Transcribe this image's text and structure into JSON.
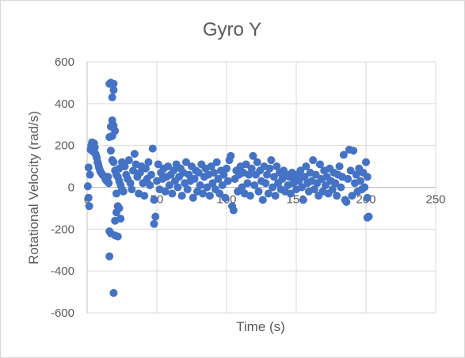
{
  "chart_data": {
    "type": "scatter",
    "title": "Gyro Y",
    "xlabel": "Time (s)",
    "ylabel": "Rotational Velocity (rad/s)",
    "xlim": [
      0,
      250
    ],
    "ylim": [
      -600,
      600
    ],
    "xticks": [
      0,
      50,
      100,
      150,
      200,
      250
    ],
    "yticks": [
      -600,
      -400,
      -200,
      0,
      200,
      400,
      600
    ],
    "xtick_labels": [
      "0",
      "50",
      "100",
      "150",
      "200",
      "250"
    ],
    "ytick_labels": [
      "-600",
      "-400",
      "-200",
      "0",
      "200",
      "400",
      "600"
    ],
    "grid": true,
    "legend": "none",
    "marker_color": "#4472C4",
    "series": [
      {
        "points": [
          [
            0.5,
            5
          ],
          [
            1,
            -50
          ],
          [
            1.5,
            -90
          ],
          [
            1,
            95
          ],
          [
            2,
            60
          ],
          [
            2.5,
            180
          ],
          [
            3,
            200
          ],
          [
            3.5,
            215
          ],
          [
            4,
            195
          ],
          [
            4.5,
            170
          ],
          [
            5,
            210
          ],
          [
            5.5,
            190
          ],
          [
            6,
            160
          ],
          [
            6.5,
            150
          ],
          [
            7,
            140
          ],
          [
            7.5,
            120
          ],
          [
            8,
            110
          ],
          [
            8.5,
            95
          ],
          [
            9,
            85
          ],
          [
            9.5,
            75
          ],
          [
            10,
            70
          ],
          [
            11,
            60
          ],
          [
            12,
            55
          ],
          [
            13,
            40
          ],
          [
            14,
            30
          ],
          [
            15,
            50
          ],
          [
            15.5,
            20
          ],
          [
            16,
            495
          ],
          [
            17,
            500
          ],
          [
            19,
            495
          ],
          [
            18,
            430
          ],
          [
            19,
            465
          ],
          [
            18,
            320
          ],
          [
            17,
            290
          ],
          [
            19,
            295
          ],
          [
            20,
            270
          ],
          [
            18,
            245
          ],
          [
            17,
            175
          ],
          [
            16,
            240
          ],
          [
            16,
            -210
          ],
          [
            17,
            -220
          ],
          [
            16,
            -330
          ],
          [
            19,
            -505
          ],
          [
            20,
            -230
          ],
          [
            22,
            -235
          ],
          [
            20,
            -160
          ],
          [
            21,
            -120
          ],
          [
            22,
            -90
          ],
          [
            23,
            -100
          ],
          [
            24,
            -150
          ],
          [
            18,
            130
          ],
          [
            19,
            120
          ],
          [
            20,
            80
          ],
          [
            21,
            60
          ],
          [
            22,
            50
          ],
          [
            23,
            30
          ],
          [
            24,
            10
          ],
          [
            25,
            -10
          ],
          [
            26,
            -20
          ],
          [
            21,
            -30
          ],
          [
            23,
            90
          ],
          [
            25,
            120
          ],
          [
            27,
            100
          ],
          [
            28,
            60
          ],
          [
            29,
            40
          ],
          [
            30,
            130
          ],
          [
            31,
            20
          ],
          [
            32,
            -10
          ],
          [
            33,
            80
          ],
          [
            34,
            160
          ],
          [
            35,
            110
          ],
          [
            36,
            50
          ],
          [
            37,
            -30
          ],
          [
            38,
            70
          ],
          [
            39,
            100
          ],
          [
            40,
            20
          ],
          [
            41,
            -40
          ],
          [
            42,
            90
          ],
          [
            43,
            40
          ],
          [
            44,
            120
          ],
          [
            45,
            10
          ],
          [
            46,
            60
          ],
          [
            47,
            185
          ],
          [
            48,
            -60
          ],
          [
            49,
            -140
          ],
          [
            48,
            -175
          ],
          [
            50,
            30
          ],
          [
            51,
            110
          ],
          [
            52,
            -10
          ],
          [
            53,
            70
          ],
          [
            54,
            40
          ],
          [
            55,
            90
          ],
          [
            56,
            -20
          ],
          [
            57,
            50
          ],
          [
            58,
            100
          ],
          [
            59,
            10
          ],
          [
            60,
            60
          ],
          [
            61,
            -30
          ],
          [
            62,
            80
          ],
          [
            63,
            30
          ],
          [
            64,
            110
          ],
          [
            65,
            0
          ],
          [
            66,
            50
          ],
          [
            67,
            90
          ],
          [
            68,
            -40
          ],
          [
            69,
            70
          ],
          [
            70,
            20
          ],
          [
            71,
            120
          ],
          [
            72,
            -10
          ],
          [
            73,
            60
          ],
          [
            74,
            30
          ],
          [
            75,
            100
          ],
          [
            76,
            -50
          ],
          [
            77,
            40
          ],
          [
            78,
            80
          ],
          [
            79,
            -20
          ],
          [
            80,
            70
          ],
          [
            81,
            10
          ],
          [
            82,
            110
          ],
          [
            83,
            -30
          ],
          [
            84,
            50
          ],
          [
            85,
            90
          ],
          [
            86,
            0
          ],
          [
            87,
            60
          ],
          [
            88,
            -40
          ],
          [
            89,
            100
          ],
          [
            90,
            20
          ],
          [
            91,
            70
          ],
          [
            92,
            -10
          ],
          [
            93,
            120
          ],
          [
            94,
            40
          ],
          [
            95,
            -30
          ],
          [
            96,
            80
          ],
          [
            97,
            10
          ],
          [
            98,
            60
          ],
          [
            99,
            -50
          ],
          [
            100,
            90
          ],
          [
            101,
            30
          ],
          [
            102,
            130
          ],
          [
            103,
            150
          ],
          [
            104,
            -90
          ],
          [
            105,
            -110
          ],
          [
            106,
            40
          ],
          [
            107,
            80
          ],
          [
            108,
            -20
          ],
          [
            109,
            60
          ],
          [
            110,
            100
          ],
          [
            111,
            0
          ],
          [
            112,
            70
          ],
          [
            113,
            -30
          ],
          [
            114,
            110
          ],
          [
            115,
            20
          ],
          [
            116,
            60
          ],
          [
            117,
            -40
          ],
          [
            118,
            90
          ],
          [
            119,
            150
          ],
          [
            120,
            10
          ],
          [
            121,
            60
          ],
          [
            122,
            120
          ],
          [
            123,
            -20
          ],
          [
            124,
            80
          ],
          [
            125,
            30
          ],
          [
            126,
            -60
          ],
          [
            127,
            100
          ],
          [
            128,
            20
          ],
          [
            129,
            60
          ],
          [
            130,
            -30
          ],
          [
            131,
            90
          ],
          [
            132,
            130
          ],
          [
            133,
            0
          ],
          [
            134,
            50
          ],
          [
            135,
            -40
          ],
          [
            136,
            100
          ],
          [
            137,
            20
          ],
          [
            138,
            70
          ],
          [
            139,
            -10
          ],
          [
            140,
            40
          ],
          [
            141,
            80
          ],
          [
            142,
            -20
          ],
          [
            143,
            60
          ],
          [
            144,
            10
          ],
          [
            145,
            50
          ],
          [
            146,
            -30
          ],
          [
            147,
            70
          ],
          [
            148,
            20
          ],
          [
            149,
            40
          ],
          [
            150,
            -10
          ],
          [
            151,
            60
          ],
          [
            152,
            30
          ],
          [
            153,
            80
          ],
          [
            154,
            0
          ],
          [
            155,
            -60
          ],
          [
            156,
            50
          ],
          [
            157,
            100
          ],
          [
            158,
            20
          ],
          [
            159,
            -20
          ],
          [
            160,
            70
          ],
          [
            161,
            30
          ],
          [
            162,
            130
          ],
          [
            163,
            -10
          ],
          [
            164,
            60
          ],
          [
            165,
            20
          ],
          [
            166,
            -40
          ],
          [
            167,
            110
          ],
          [
            168,
            40
          ],
          [
            169,
            -20
          ],
          [
            170,
            80
          ],
          [
            171,
            10
          ],
          [
            172,
            50
          ],
          [
            173,
            -30
          ],
          [
            174,
            90
          ],
          [
            175,
            30
          ],
          [
            176,
            -10
          ],
          [
            177,
            70
          ],
          [
            178,
            20
          ],
          [
            179,
            -40
          ],
          [
            180,
            60
          ],
          [
            181,
            100
          ],
          [
            182,
            0
          ],
          [
            183,
            50
          ],
          [
            184,
            155
          ],
          [
            185,
            -60
          ],
          [
            186,
            -70
          ],
          [
            187,
            40
          ],
          [
            188,
            180
          ],
          [
            189,
            80
          ],
          [
            190,
            -40
          ],
          [
            191,
            175
          ],
          [
            192,
            20
          ],
          [
            193,
            60
          ],
          [
            194,
            -20
          ],
          [
            195,
            90
          ],
          [
            196,
            30
          ],
          [
            197,
            -10
          ],
          [
            198,
            70
          ],
          [
            199,
            0
          ],
          [
            200,
            120
          ],
          [
            201,
            50
          ],
          [
            201,
            -50
          ],
          [
            201,
            -145
          ],
          [
            202,
            -140
          ]
        ]
      }
    ]
  }
}
